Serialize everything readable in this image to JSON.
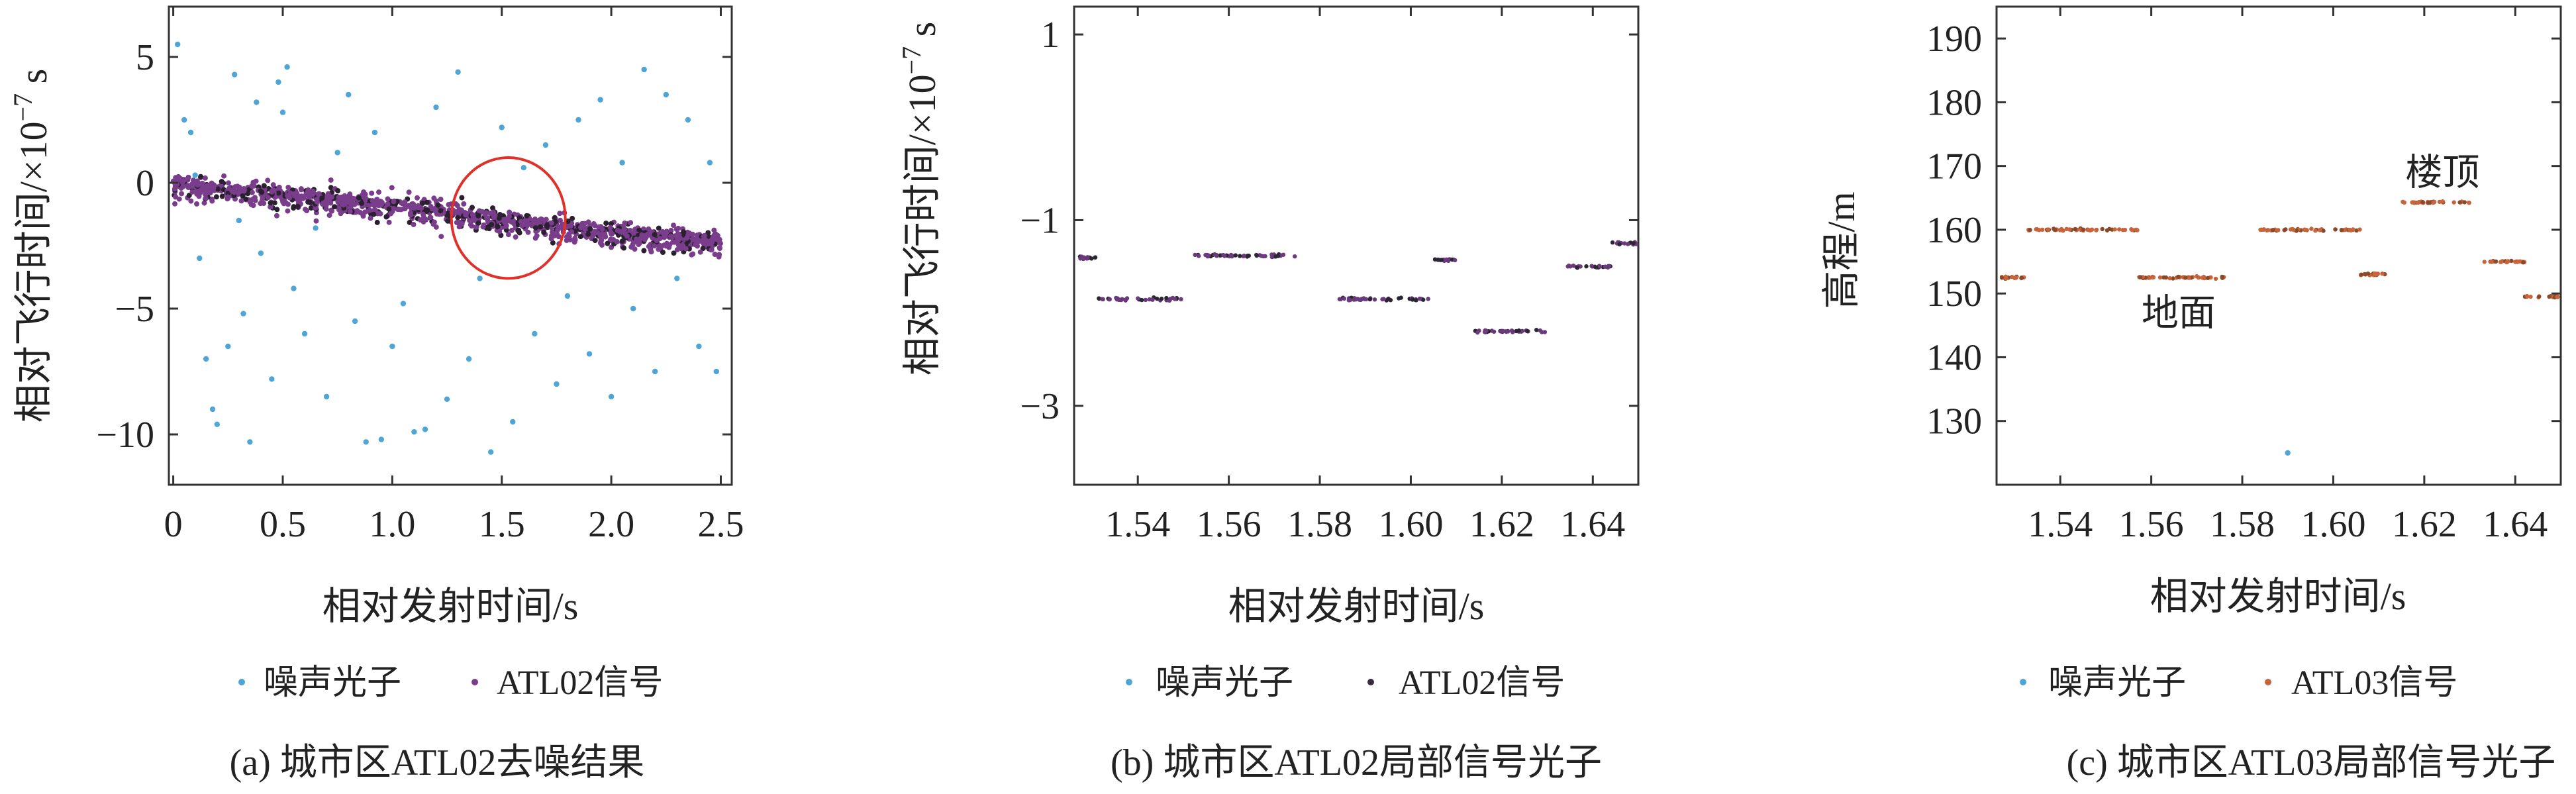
{
  "chart_data": [
    {
      "type": "scatter",
      "caption": "(a) 城市区ATL02去噪结果",
      "xlabel": "相对发射时间/s",
      "ylabel": "相对飞行时间/×10",
      "ylabel_exp": "−7",
      "ylabel_unit": " s",
      "xlim": [
        -0.02,
        2.55
      ],
      "ylim": [
        -12,
        7
      ],
      "xticks": [
        0,
        0.5,
        1.0,
        1.5,
        2.0,
        2.5
      ],
      "xtick_labels": [
        "0",
        "0.5",
        "1.0",
        "1.5",
        "2.0",
        "2.5"
      ],
      "yticks": [
        5,
        0,
        -5,
        -10
      ],
      "ytick_labels": [
        "5",
        "0",
        "−5",
        "−10"
      ],
      "grid": false,
      "legend_position": "below",
      "annotation": {
        "type": "circle",
        "center": [
          1.53,
          -1.4
        ],
        "radius": [
          0.26,
          2.4
        ],
        "color": "#e0302a"
      },
      "series": [
        {
          "name": "噪声光子",
          "color": "#4ea6d6",
          "marker": "dot",
          "points": [
            [
              0.02,
              5.5
            ],
            [
              0.05,
              2.5
            ],
            [
              0.08,
              2.0
            ],
            [
              0.1,
              0.3
            ],
            [
              0.12,
              -3.0
            ],
            [
              0.15,
              -7.0
            ],
            [
              0.18,
              -9.0
            ],
            [
              0.2,
              -9.6
            ],
            [
              0.25,
              -6.5
            ],
            [
              0.28,
              4.3
            ],
            [
              0.3,
              -1.5
            ],
            [
              0.32,
              -5.2
            ],
            [
              0.35,
              -10.3
            ],
            [
              0.38,
              3.2
            ],
            [
              0.4,
              -2.8
            ],
            [
              0.45,
              -7.8
            ],
            [
              0.48,
              4.0
            ],
            [
              0.5,
              2.8
            ],
            [
              0.52,
              4.6
            ],
            [
              0.55,
              -4.2
            ],
            [
              0.6,
              -6.0
            ],
            [
              0.65,
              -1.8
            ],
            [
              0.7,
              -8.5
            ],
            [
              0.75,
              1.2
            ],
            [
              0.8,
              3.5
            ],
            [
              0.83,
              -5.5
            ],
            [
              0.88,
              -10.3
            ],
            [
              0.92,
              2.0
            ],
            [
              0.95,
              -10.2
            ],
            [
              1.0,
              -6.5
            ],
            [
              1.05,
              -4.8
            ],
            [
              1.1,
              -9.9
            ],
            [
              1.15,
              -9.8
            ],
            [
              1.2,
              3.0
            ],
            [
              1.25,
              -8.6
            ],
            [
              1.3,
              4.4
            ],
            [
              1.35,
              -7.0
            ],
            [
              1.4,
              -3.8
            ],
            [
              1.45,
              -10.7
            ],
            [
              1.5,
              2.2
            ],
            [
              1.55,
              -9.5
            ],
            [
              1.6,
              0.6
            ],
            [
              1.65,
              -6.0
            ],
            [
              1.7,
              1.5
            ],
            [
              1.75,
              -8.0
            ],
            [
              1.8,
              -4.5
            ],
            [
              1.85,
              2.5
            ],
            [
              1.9,
              -6.8
            ],
            [
              1.95,
              3.3
            ],
            [
              2.0,
              -8.5
            ],
            [
              2.05,
              0.8
            ],
            [
              2.1,
              -5.0
            ],
            [
              2.15,
              4.5
            ],
            [
              2.2,
              -7.5
            ],
            [
              2.25,
              3.5
            ],
            [
              2.3,
              -3.8
            ],
            [
              2.35,
              2.5
            ],
            [
              2.4,
              -6.5
            ],
            [
              2.45,
              0.8
            ],
            [
              2.48,
              -7.5
            ]
          ]
        },
        {
          "name": "ATL02信号",
          "color": "#7a3d8c",
          "marker": "dot",
          "trend": [
            [
              0.0,
              0.0
            ],
            [
              0.5,
              -0.5
            ],
            [
              1.0,
              -0.85
            ],
            [
              1.5,
              -1.45
            ],
            [
              2.0,
              -1.9
            ],
            [
              2.5,
              -2.3
            ]
          ]
        }
      ]
    },
    {
      "type": "scatter",
      "caption": "(b) 城市区ATL02局部信号光子",
      "xlabel": "相对发射时间/s",
      "ylabel": "相对飞行时间/×10",
      "ylabel_exp": "−7",
      "ylabel_unit": " s",
      "xlim": [
        1.526,
        1.65
      ],
      "ylim": [
        -3.85,
        1.3
      ],
      "xticks": [
        1.54,
        1.56,
        1.58,
        1.6,
        1.62,
        1.64
      ],
      "xtick_labels": [
        "1.54",
        "1.56",
        "1.58",
        "1.60",
        "1.62",
        "1.64"
      ],
      "yticks": [
        1,
        -1,
        -3
      ],
      "ytick_labels": [
        "1",
        "−1",
        "−3"
      ],
      "grid": false,
      "legend_position": "below",
      "series": [
        {
          "name": "噪声光子",
          "color": "#4ea6d6",
          "marker": "dot"
        },
        {
          "name": "ATL02信号",
          "color": "#7a3d8c",
          "marker": "dot",
          "segments": [
            [
              1.527,
              1.531,
              -1.4
            ],
            [
              1.531,
              1.55,
              -1.85
            ],
            [
              1.552,
              1.575,
              -1.38
            ],
            [
              1.584,
              1.604,
              -1.85
            ],
            [
              1.605,
              1.61,
              -1.43
            ],
            [
              1.614,
              1.63,
              -2.2
            ],
            [
              1.634,
              1.644,
              -1.5
            ],
            [
              1.644,
              1.65,
              -1.25
            ]
          ]
        }
      ]
    },
    {
      "type": "scatter",
      "caption": "(c) 城市区ATL03局部信号光子",
      "xlabel": "相对发射时间/s",
      "ylabel": "高程/m",
      "xlim": [
        1.526,
        1.65
      ],
      "ylim": [
        120,
        195
      ],
      "xticks": [
        1.54,
        1.56,
        1.58,
        1.6,
        1.62,
        1.64
      ],
      "xtick_labels": [
        "1.54",
        "1.56",
        "1.58",
        "1.60",
        "1.62",
        "1.64"
      ],
      "yticks": [
        130,
        140,
        150,
        160,
        170,
        180,
        190
      ],
      "ytick_labels": [
        "130",
        "140",
        "150",
        "160",
        "170",
        "180",
        "190"
      ],
      "grid": false,
      "legend_position": "below",
      "annotations": [
        {
          "text": "楼顶",
          "x": 1.624,
          "y": 167
        },
        {
          "text": "地面",
          "x": 1.566,
          "y": 145
        }
      ],
      "series": [
        {
          "name": "噪声光子",
          "color": "#4ea6d6",
          "marker": "dot",
          "points": [
            [
              1.59,
              125
            ]
          ]
        },
        {
          "name": "ATL03信号",
          "color": "#c8643c",
          "marker": "dot",
          "segments": [
            [
              1.527,
              1.532,
              152.5
            ],
            [
              1.532,
              1.557,
              160
            ],
            [
              1.557,
              1.576,
              152.5
            ],
            [
              1.584,
              1.606,
              160
            ],
            [
              1.606,
              1.612,
              153
            ],
            [
              1.615,
              1.63,
              164.3
            ],
            [
              1.633,
              1.642,
              155
            ],
            [
              1.642,
              1.65,
              149.5
            ]
          ]
        }
      ]
    }
  ]
}
